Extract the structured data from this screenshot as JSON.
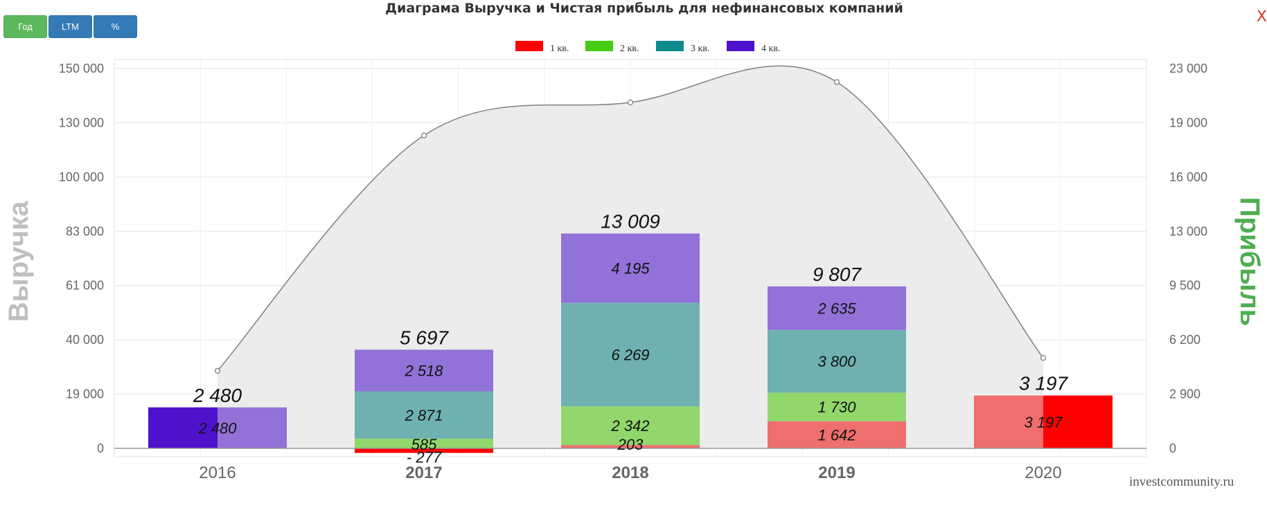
{
  "controls": {
    "buttons": [
      {
        "label": "Год",
        "color": "#5cb85c"
      },
      {
        "label": "LTM",
        "color": "#337ab7"
      },
      {
        "label": "%",
        "color": "#337ab7"
      }
    ],
    "close_glyph": "X"
  },
  "watermark": "investcommunity.ru",
  "chart_data": {
    "type": "bar",
    "title": "Диаграма Выручка и Чистая прибыль для нефинансовых компаний",
    "left_axis_label": "Выручка",
    "right_axis_label": "Прибыль",
    "left_axis_color": "#bfbfbf",
    "right_axis_color": "#4fae4f",
    "categories": [
      "2016",
      "2017",
      "2018",
      "2019",
      "2020"
    ],
    "left_ticks": [
      "150 000",
      "130 000",
      "100 000",
      "83 000",
      "61 000",
      "40 000",
      "19 000",
      "0"
    ],
    "right_ticks": [
      "23 000",
      "19 000",
      "16 000",
      "13 000",
      "9 500",
      "6 200",
      "2 900",
      "0"
    ],
    "profit_scale": {
      "ymin": 0,
      "ymax": 23000
    },
    "series": [
      {
        "name": "1 кв.",
        "color": "#ff0000",
        "values": [
          null,
          -277,
          203,
          1642,
          3197
        ],
        "labels": [
          "",
          "- 277",
          "203",
          "1 642",
          "3 197"
        ]
      },
      {
        "name": "2 кв.",
        "color": "#44cc11",
        "values": [
          null,
          585,
          2342,
          1730,
          null
        ],
        "labels": [
          "",
          "585",
          "2 342",
          "1 730",
          ""
        ]
      },
      {
        "name": "3 кв.",
        "color": "#0e8a8a",
        "values": [
          null,
          2871,
          6269,
          3800,
          null
        ],
        "labels": [
          "",
          "2 871",
          "6 269",
          "3 800",
          ""
        ]
      },
      {
        "name": "4 кв.",
        "color": "#4f12cc",
        "values": [
          2480,
          2518,
          4195,
          2635,
          null
        ],
        "labels": [
          "2 480",
          "2 518",
          "4 195",
          "2 635",
          ""
        ]
      }
    ],
    "totals": [
      "2 480",
      "5 697",
      "13 009",
      "9 807",
      "3 197"
    ],
    "revenue_curve": {
      "color": "#808080",
      "fill": "#ececec",
      "values_in_axis_units": [
        28000,
        123000,
        137500,
        145000,
        33000
      ]
    }
  }
}
